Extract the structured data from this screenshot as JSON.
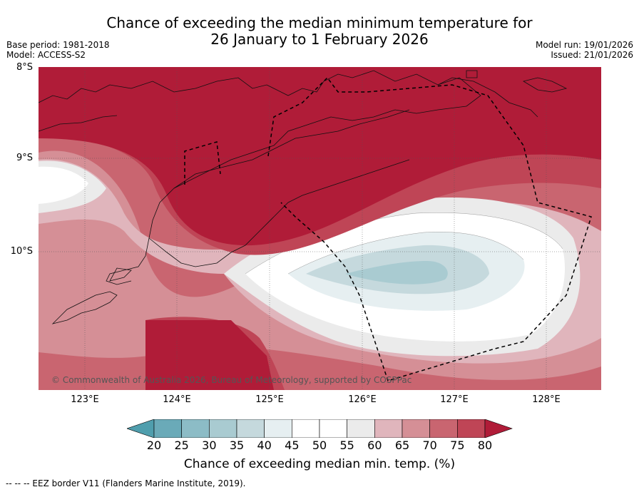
{
  "title_line1": "Chance of exceeding the median minimum temperature for",
  "title_line2": "26 January to 1 February 2026",
  "meta": {
    "base_period": "Base period: 1981-2018",
    "model": "Model: ACCESS-S2",
    "model_run": "Model run: 19/01/2026",
    "issued": "Issued: 21/01/2026"
  },
  "axes": {
    "lat_labels": [
      "8°S",
      "9°S",
      "10°S"
    ],
    "lon_labels": [
      "123°E",
      "124°E",
      "125°E",
      "126°E",
      "127°E",
      "128°E"
    ]
  },
  "colorbar": {
    "ticks": [
      "20",
      "25",
      "30",
      "35",
      "40",
      "45",
      "50",
      "55",
      "60",
      "65",
      "70",
      "75",
      "80"
    ],
    "colors": [
      "#4f9ead",
      "#6aaab8",
      "#8cbcc6",
      "#a9cbd1",
      "#c5d9dd",
      "#e6eff1",
      "#ffffff",
      "#ffffff",
      "#ebebeb",
      "#e0b5bc",
      "#d58f96",
      "#c96570",
      "#bf4556",
      "#b01c38"
    ],
    "label": "Chance of exceeding median min. temp. (%)"
  },
  "copyright": "© Commonwealth of Australia 2026, Bureau of Meteorology, supported by COSPPac",
  "footer": "--  --  -- EEZ border V11 (Flanders Marine Institute, 2019)."
}
